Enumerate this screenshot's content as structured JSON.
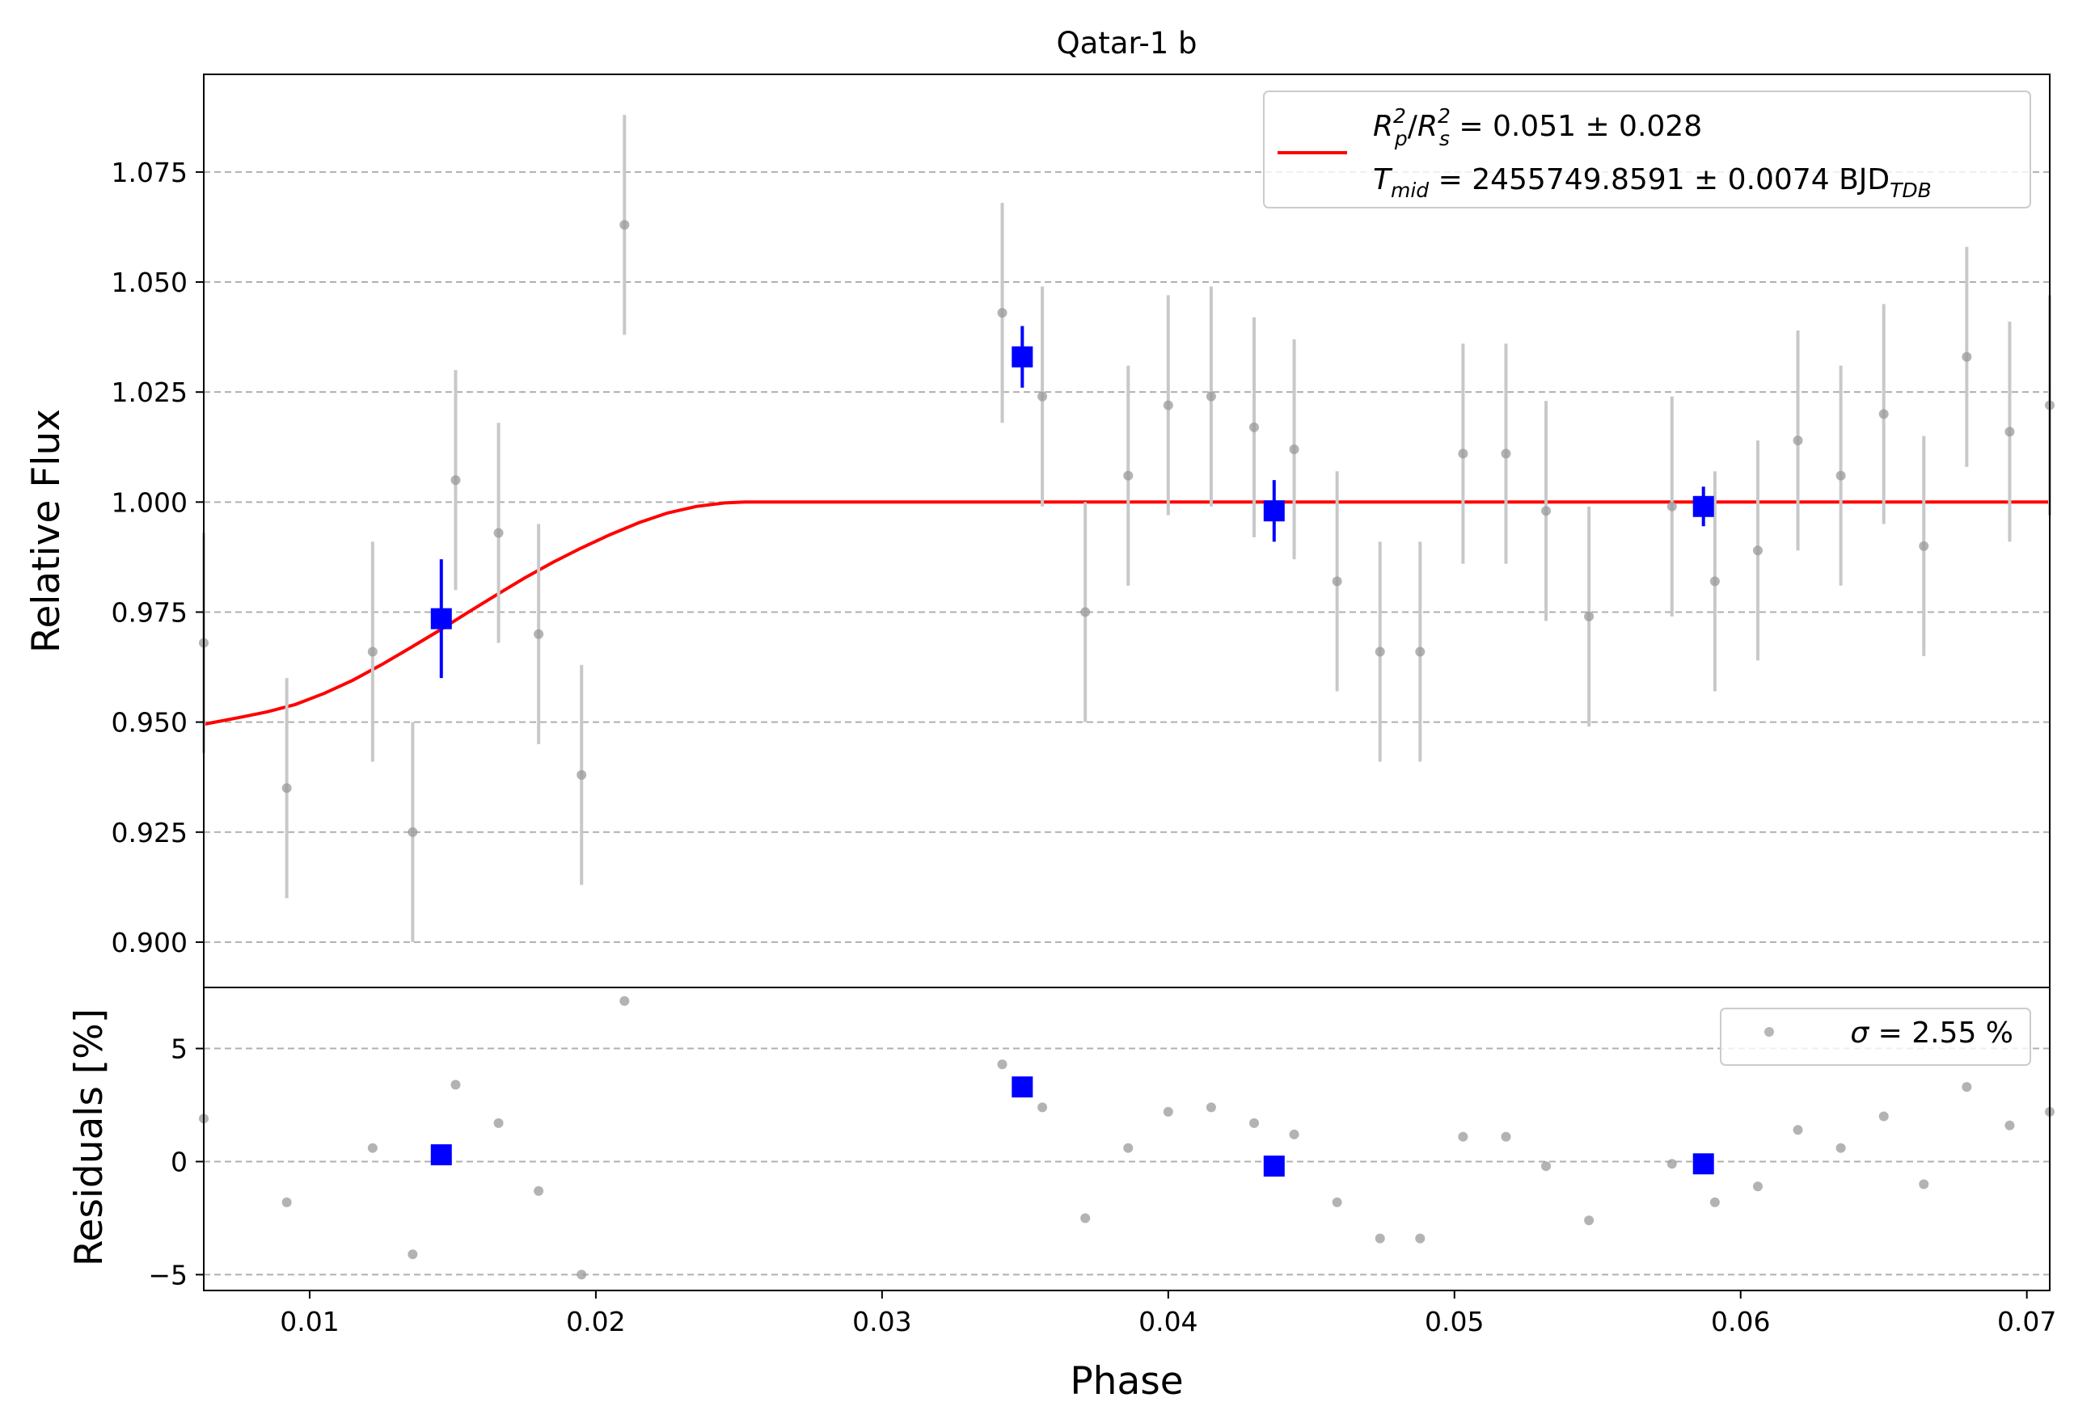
{
  "chart_data": [
    {
      "type": "scatter",
      "panel": "top",
      "title": "Qatar-1 b",
      "xlabel": "",
      "ylabel": "Relative Flux",
      "xlim": [
        0.0063,
        0.0708
      ],
      "ylim": [
        0.8897,
        1.0972
      ],
      "yticks": [
        0.9,
        0.925,
        0.95,
        0.975,
        1.0,
        1.025,
        1.05,
        1.075
      ],
      "ytick_labels": [
        "0.900",
        "0.925",
        "0.950",
        "0.975",
        "1.000",
        "1.025",
        "1.050",
        "1.075"
      ],
      "grid": "horizontal-dashed",
      "legend_position": "top-right",
      "legend": {
        "line_color": "#ff0000",
        "line1": {
          "ratio_p": "R",
          "sub_p": "p",
          "sup_p": "2",
          "slash": "/",
          "ratio_s": "R",
          "sub_s": "s",
          "sup_s": "2",
          "value": " = 0.051 ± 0.028"
        },
        "line2": {
          "var": "T",
          "sub_var": "mid",
          "value": " = 2455749.8591 ± 0.0074 BJD",
          "sub_unit": "TDB"
        }
      },
      "series": [
        {
          "role": "data",
          "color": "#999999",
          "errcolor": "#c8c8c8",
          "x": [
            0.0063,
            0.0092,
            0.0122,
            0.0136,
            0.0151,
            0.0166,
            0.018,
            0.0195,
            0.021,
            0.0342,
            0.0356,
            0.0371,
            0.0386,
            0.04,
            0.0415,
            0.043,
            0.0444,
            0.0459,
            0.0474,
            0.0488,
            0.0503,
            0.0518,
            0.0532,
            0.0547,
            0.0576,
            0.0591,
            0.0606,
            0.062,
            0.0635,
            0.065,
            0.0664,
            0.0679,
            0.0694,
            0.0708
          ],
          "y": [
            0.968,
            0.935,
            0.966,
            0.925,
            1.005,
            0.993,
            0.97,
            0.938,
            1.063,
            1.043,
            1.024,
            0.975,
            1.006,
            1.022,
            1.024,
            1.017,
            1.012,
            0.982,
            0.966,
            0.966,
            1.011,
            1.011,
            0.998,
            0.974,
            0.999,
            0.982,
            0.989,
            1.014,
            1.006,
            1.02,
            0.99,
            1.033,
            1.016,
            1.022
          ],
          "yerr": [
            0.025,
            0.025,
            0.025,
            0.025,
            0.025,
            0.025,
            0.025,
            0.025,
            0.025,
            0.025,
            0.025,
            0.025,
            0.025,
            0.025,
            0.025,
            0.025,
            0.025,
            0.025,
            0.025,
            0.025,
            0.025,
            0.025,
            0.025,
            0.025,
            0.025,
            0.025,
            0.025,
            0.025,
            0.025,
            0.025,
            0.025,
            0.025,
            0.025,
            0.025
          ]
        },
        {
          "role": "binned",
          "color": "#0000ff",
          "x": [
            0.0146,
            0.0349,
            0.0437,
            0.0587
          ],
          "y": [
            0.9735,
            1.033,
            0.998,
            0.999
          ],
          "yerr": [
            0.0135,
            0.007,
            0.007,
            0.0045
          ]
        },
        {
          "role": "model",
          "color": "#ff0000",
          "x": [
            0.0063,
            0.0075,
            0.0085,
            0.0095,
            0.0105,
            0.0115,
            0.0125,
            0.0135,
            0.0145,
            0.0155,
            0.0165,
            0.0175,
            0.0185,
            0.0195,
            0.0205,
            0.0215,
            0.0225,
            0.0235,
            0.0245,
            0.0252,
            0.03,
            0.04,
            0.05,
            0.06,
            0.0708
          ],
          "y": [
            0.9495,
            0.951,
            0.9523,
            0.954,
            0.9565,
            0.9595,
            0.963,
            0.9668,
            0.9707,
            0.9748,
            0.9788,
            0.9827,
            0.9863,
            0.9896,
            0.9926,
            0.9953,
            0.9975,
            0.999,
            0.9998,
            1.0,
            1.0,
            1.0,
            1.0,
            1.0,
            1.0
          ]
        }
      ]
    },
    {
      "type": "scatter",
      "panel": "bottom",
      "xlabel": "Phase",
      "ylabel": "Residuals [%]",
      "xlim": [
        0.0063,
        0.0708
      ],
      "ylim": [
        -5.7,
        7.7
      ],
      "xticks": [
        0.01,
        0.02,
        0.03,
        0.04,
        0.05,
        0.06,
        0.07
      ],
      "xtick_labels": [
        "0.01",
        "0.02",
        "0.03",
        "0.04",
        "0.05",
        "0.06",
        "0.07"
      ],
      "yticks": [
        -5,
        0,
        5
      ],
      "ytick_labels": [
        "−5",
        "0",
        "5"
      ],
      "grid": "horizontal-dashed",
      "legend_position": "top-right",
      "legend": {
        "sigma": "σ",
        "value": " = 2.55 %"
      },
      "series": [
        {
          "role": "data",
          "color": "#999999",
          "x": [
            0.0063,
            0.0092,
            0.0122,
            0.0136,
            0.0151,
            0.0166,
            0.018,
            0.0195,
            0.021,
            0.0342,
            0.0356,
            0.0371,
            0.0386,
            0.04,
            0.0415,
            0.043,
            0.0444,
            0.0459,
            0.0474,
            0.0488,
            0.0503,
            0.0518,
            0.0532,
            0.0547,
            0.0576,
            0.0591,
            0.0606,
            0.062,
            0.0635,
            0.065,
            0.0664,
            0.0679,
            0.0694,
            0.0708
          ],
          "y": [
            1.9,
            -1.8,
            0.6,
            -4.1,
            3.4,
            1.7,
            -1.3,
            -5.0,
            7.1,
            4.3,
            2.4,
            -2.5,
            0.6,
            2.2,
            2.4,
            1.7,
            1.2,
            -1.8,
            -3.4,
            -3.4,
            1.1,
            1.1,
            -0.2,
            -2.6,
            -0.1,
            -1.8,
            -1.1,
            1.4,
            0.6,
            2.0,
            -1.0,
            3.3,
            1.6,
            2.2
          ]
        },
        {
          "role": "binned",
          "color": "#0000ff",
          "x": [
            0.0146,
            0.0349,
            0.0437,
            0.0587
          ],
          "y": [
            0.3,
            3.3,
            -0.2,
            -0.1
          ]
        }
      ]
    }
  ]
}
